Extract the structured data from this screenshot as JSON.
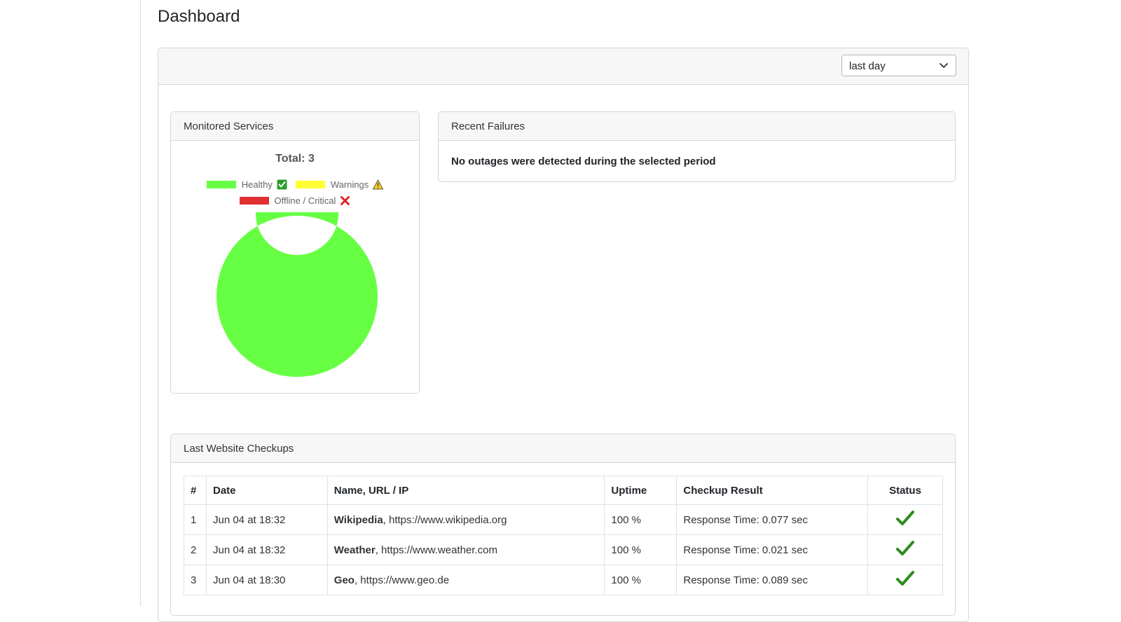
{
  "page": {
    "title": "Dashboard"
  },
  "filter": {
    "period": "last day"
  },
  "monitored_services": {
    "header": "Monitored Services",
    "total_label": "Total: 3",
    "legend": [
      {
        "label": "Healthy",
        "color": "#66ff44",
        "icon": "check-box-icon"
      },
      {
        "label": "Warnings",
        "color": "#ffff33",
        "icon": "warning-icon"
      },
      {
        "label": "Offline / Critical",
        "color": "#e03030",
        "icon": "cross-icon"
      }
    ],
    "chart_data": {
      "type": "pie",
      "categories": [
        "Healthy",
        "Warnings",
        "Offline / Critical"
      ],
      "values": [
        3,
        0,
        0
      ],
      "colors": [
        "#66ff44",
        "#ffff33",
        "#e03030"
      ],
      "title": "Total: 3"
    }
  },
  "recent_failures": {
    "header": "Recent Failures",
    "message": "No outages were detected during the selected period"
  },
  "checkups": {
    "header": "Last Website Checkups",
    "columns": [
      "#",
      "Date",
      "Name, URL / IP",
      "Uptime",
      "Checkup Result",
      "Status"
    ],
    "rows": [
      {
        "num": "1",
        "date": "Jun 04 at 18:32",
        "name": "Wikipedia",
        "url": ", https://www.wikipedia.org",
        "uptime": "100 %",
        "result": "Response Time: 0.077 sec",
        "status_icon": "checkmark-icon"
      },
      {
        "num": "2",
        "date": "Jun 04 at 18:32",
        "name": "Weather",
        "url": ", https://www.weather.com",
        "uptime": "100 %",
        "result": "Response Time: 0.021 sec",
        "status_icon": "checkmark-icon"
      },
      {
        "num": "3",
        "date": "Jun 04 at 18:30",
        "name": "Geo",
        "url": ", https://www.geo.de",
        "uptime": "100 %",
        "result": "Response Time: 0.089 sec",
        "status_icon": "checkmark-icon"
      }
    ]
  }
}
